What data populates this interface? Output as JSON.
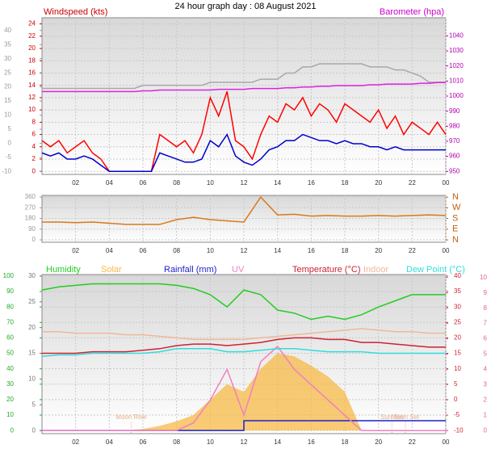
{
  "chart_data": [
    {
      "type": "line",
      "title": "24 hour graph day : 08 August 2021",
      "ylabel": "Windspeed (kts)",
      "y2label": "Barometer (hpa)",
      "x": [
        0,
        0.5,
        1,
        1.5,
        2,
        2.5,
        3,
        3.5,
        4,
        4.5,
        5,
        5.5,
        6,
        6.5,
        7,
        7.5,
        8,
        8.5,
        9,
        9.5,
        10,
        10.5,
        11,
        11.5,
        12,
        12.5,
        13,
        13.5,
        14,
        14.5,
        15,
        15.5,
        16,
        16.5,
        17,
        17.5,
        18,
        18.5,
        19,
        19.5,
        20,
        20.5,
        21,
        21.5,
        22,
        22.5,
        23,
        23.5,
        24
      ],
      "xlim": [
        0,
        24
      ],
      "xticks": [
        {
          "value": 2,
          "label": "02"
        },
        {
          "value": 4,
          "label": "04"
        },
        {
          "value": 6,
          "label": "06"
        },
        {
          "value": 8,
          "label": "08"
        },
        10,
        12,
        14,
        16,
        18,
        20,
        22,
        {
          "value": 24,
          "label": "00"
        }
      ],
      "ylim": [
        -0.5,
        25
      ],
      "yticks": [
        0,
        2,
        4,
        6,
        8,
        10,
        12,
        14,
        16,
        18,
        20,
        22,
        24
      ],
      "y3lim": [
        -11,
        44.5
      ],
      "y3ticks": [
        -10,
        -5,
        0,
        5,
        10,
        15,
        20,
        25,
        30,
        35,
        40
      ],
      "y2lim": [
        948,
        1052
      ],
      "y2ticks": [
        950,
        960,
        970,
        980,
        990,
        1000,
        1010,
        1020,
        1030,
        1040
      ],
      "grid": true,
      "series": [
        {
          "color": "#a8a8a8",
          "values": [
            13.5,
            13.5,
            13.5,
            13.5,
            13.5,
            13.5,
            13.5,
            13.5,
            13.5,
            13.5,
            13.5,
            13.5,
            14,
            14,
            14,
            14,
            14,
            14,
            14,
            14,
            14.5,
            14.5,
            14.5,
            14.5,
            14.5,
            14.5,
            15,
            15,
            15,
            16,
            16,
            17,
            17,
            17.5,
            17.5,
            17.5,
            17.5,
            17.5,
            17.5,
            17,
            17,
            17,
            16.5,
            16.5,
            16,
            15.5,
            14.5,
            14.5,
            14.5
          ]
        },
        {
          "color": "#e020e0",
          "axis": "y2",
          "values": [
            1003,
            1003,
            1003,
            1003,
            1003,
            1003,
            1003,
            1003,
            1003,
            1003,
            1003,
            1003,
            1003.5,
            1003.5,
            1004,
            1004,
            1004,
            1004,
            1004,
            1004,
            1004,
            1004.5,
            1004.5,
            1004.5,
            1004.5,
            1005,
            1005,
            1005,
            1005,
            1005.5,
            1005.5,
            1006,
            1006,
            1006.5,
            1006.5,
            1007,
            1007,
            1007,
            1007,
            1007.5,
            1007.5,
            1008,
            1008,
            1008,
            1008,
            1008.5,
            1008.5,
            1009,
            1009
          ]
        },
        {
          "color": "#ff0000",
          "values": [
            5,
            4,
            5,
            3,
            4,
            5,
            3,
            2,
            0,
            0,
            0,
            0,
            0,
            0,
            6,
            5,
            4,
            5,
            3,
            6,
            12,
            9,
            13,
            5,
            4,
            2,
            6,
            9,
            8,
            11,
            10,
            12,
            9,
            11,
            10,
            8,
            11,
            10,
            9,
            8,
            10,
            7,
            9,
            6,
            8,
            7,
            6,
            8,
            6
          ]
        },
        {
          "color": "#0000cc",
          "values": [
            3,
            2.5,
            3,
            2,
            2,
            2.5,
            2,
            1,
            0,
            0,
            0,
            0,
            0,
            0,
            3,
            2.5,
            2,
            1.5,
            1.5,
            2,
            5,
            4,
            6,
            2.5,
            1.5,
            1,
            2,
            3.5,
            4,
            5,
            5,
            6,
            5.5,
            5,
            5,
            4.5,
            5,
            4.5,
            4.5,
            4,
            4,
            3.5,
            4,
            3.5,
            3.5,
            3.5,
            3.5,
            3.5,
            3.5
          ]
        }
      ]
    },
    {
      "type": "line",
      "x": [
        0,
        1,
        2,
        3,
        4,
        5,
        6,
        7,
        8,
        9,
        10,
        11,
        12,
        13,
        14,
        15,
        16,
        17,
        18,
        19,
        20,
        21,
        22,
        23,
        24
      ],
      "xlim": [
        0,
        24
      ],
      "xticks": [
        {
          "value": 2,
          "label": "02"
        },
        {
          "value": 4,
          "label": "04"
        },
        {
          "value": 6,
          "label": "06"
        },
        {
          "value": 8,
          "label": "08"
        },
        10,
        12,
        14,
        16,
        18,
        20,
        22,
        {
          "value": 24,
          "label": "00"
        }
      ],
      "ylim": [
        -20,
        374
      ],
      "yticks": [
        0,
        90,
        180,
        270,
        360
      ],
      "y2lim": [
        -20,
        374
      ],
      "y2ticks": [
        {
          "value": 0,
          "label": "N"
        },
        {
          "value": 90,
          "label": "E"
        },
        {
          "value": 180,
          "label": "S"
        },
        {
          "value": 270,
          "label": "W"
        },
        {
          "value": 360,
          "label": "N"
        }
      ],
      "grid": true,
      "series": [
        {
          "color": "#d87a1a",
          "values": [
            150,
            150,
            145,
            150,
            140,
            130,
            130,
            130,
            170,
            190,
            170,
            160,
            150,
            360,
            210,
            215,
            200,
            205,
            200,
            200,
            205,
            200,
            205,
            210,
            205
          ]
        }
      ]
    },
    {
      "type": "line",
      "x": [
        0,
        1,
        2,
        3,
        4,
        5,
        6,
        7,
        8,
        9,
        10,
        11,
        12,
        13,
        14,
        15,
        16,
        17,
        18,
        19,
        20,
        21,
        22,
        23,
        24
      ],
      "xlim": [
        0,
        24
      ],
      "xticks": [
        {
          "value": 2,
          "label": "02"
        },
        {
          "value": 4,
          "label": "04"
        },
        {
          "value": 6,
          "label": "06"
        },
        {
          "value": 8,
          "label": "08"
        },
        10,
        12,
        14,
        16,
        18,
        20,
        22,
        {
          "value": 24,
          "label": "00"
        }
      ],
      "ylim": [
        -2,
        101
      ],
      "yticks": [
        0,
        10,
        20,
        30,
        40,
        50,
        60,
        70,
        80,
        90,
        100
      ],
      "y3lim": [
        -0.6,
        30.3
      ],
      "y3ticks": [
        0,
        5,
        10,
        15,
        20,
        25,
        30
      ],
      "y2lim": [
        -11,
        40.5
      ],
      "y2ticks": [
        -10,
        -5,
        0,
        5,
        10,
        15,
        20,
        25,
        30,
        35,
        40
      ],
      "y4lim": [
        -0.2,
        10.2
      ],
      "y4ticks": [
        0,
        1,
        2,
        3,
        4,
        5,
        6,
        7,
        8,
        9,
        10
      ],
      "grid": true,
      "series": [
        {
          "name": "Humidity",
          "color": "#22cc22",
          "values": [
            91,
            93,
            94,
            95,
            95,
            95,
            95,
            95,
            94,
            92,
            88,
            80,
            91,
            88,
            78,
            76,
            72,
            74,
            72,
            75,
            80,
            84,
            88,
            88,
            88
          ]
        },
        {
          "name": "Solar",
          "color": "#f5b945",
          "kind": "area",
          "values": [
            0,
            0,
            0,
            0,
            0,
            0,
            1,
            3,
            6,
            10,
            20,
            30,
            25,
            40,
            50,
            48,
            42,
            35,
            25,
            0,
            0,
            0,
            0,
            0,
            0
          ]
        },
        {
          "name": "Rainfall (mm)",
          "color": "#2020cc",
          "axis": "y3",
          "kind": "step",
          "values": [
            0,
            0,
            0,
            0,
            0,
            0,
            0,
            0,
            0,
            0,
            0,
            0,
            1.9,
            1.9,
            1.9,
            1.9,
            1.9,
            1.9,
            1.9,
            1.9,
            1.9,
            1.9,
            1.9,
            1.9,
            1.9
          ]
        },
        {
          "name": "UV",
          "color": "#f080c0",
          "axis": "y4",
          "values": [
            0,
            0,
            0,
            0,
            0,
            0,
            0,
            0,
            0,
            0.5,
            2,
            4,
            1,
            4.5,
            5.5,
            4,
            3,
            2,
            1,
            0,
            0,
            0,
            0,
            0,
            0
          ]
        },
        {
          "name": "Temperature (°C)",
          "color": "#cc2233",
          "axis": "y2",
          "values": [
            15,
            15,
            15,
            15.5,
            15.5,
            15.5,
            16,
            16.5,
            17.5,
            18,
            18,
            17.5,
            18,
            18.5,
            19.5,
            20,
            20,
            19.5,
            19.5,
            18.5,
            18.5,
            18,
            17.5,
            17,
            17
          ]
        },
        {
          "name": "Indoor",
          "color": "#f0b898",
          "axis": "y2",
          "values": [
            22,
            22,
            21.5,
            21.5,
            21.5,
            21,
            21,
            20.5,
            20,
            19.5,
            19.5,
            19.5,
            19.5,
            20,
            20.5,
            21,
            21.5,
            22,
            22.5,
            23,
            22.5,
            22,
            22,
            21.5,
            21.5
          ]
        },
        {
          "name": "Dew Point (°C)",
          "color": "#30dddd",
          "axis": "y2",
          "values": [
            14,
            14.5,
            14.5,
            15,
            15,
            15,
            15,
            15.5,
            16.5,
            16.5,
            16.5,
            15.5,
            15.5,
            16,
            16.5,
            16.5,
            16,
            15.5,
            15.5,
            15.5,
            15,
            15,
            15,
            15,
            15
          ]
        }
      ],
      "annotations": [
        {
          "text": "Moon Rise",
          "x": 5.3
        },
        {
          "text": "Sun Set",
          "x": 20.8
        },
        {
          "text": "Moon Set",
          "x": 21.6
        }
      ]
    }
  ]
}
